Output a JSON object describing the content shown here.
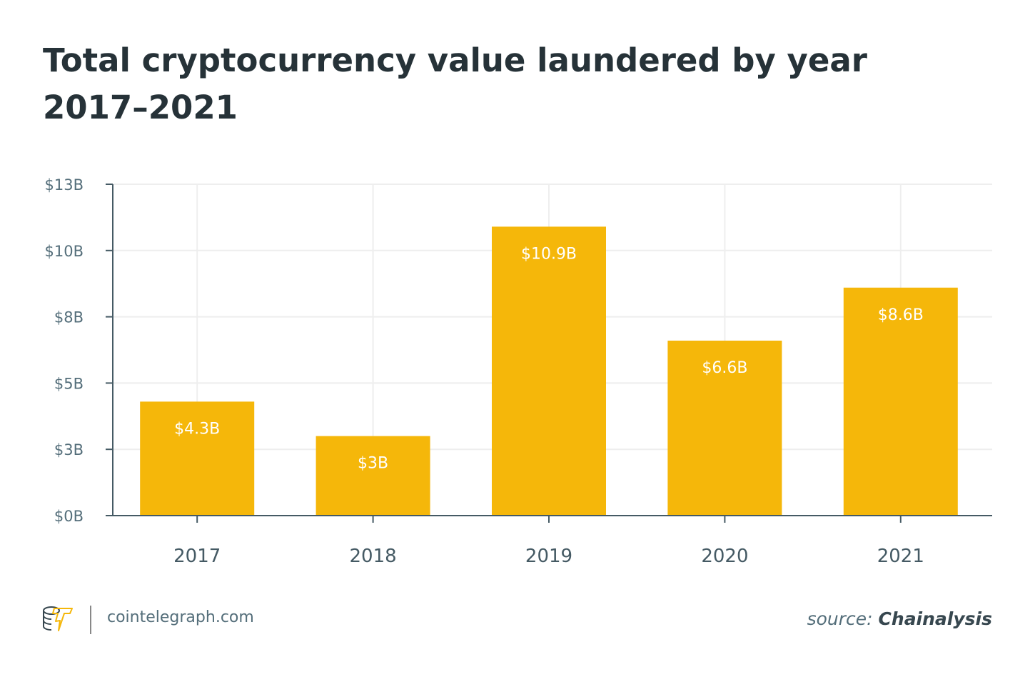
{
  "title_line1": "Total cryptocurrency value laundered by year",
  "title_line2": "2017–2021",
  "chart_data": {
    "type": "bar",
    "title": "Total cryptocurrency value laundered by year 2017–2021",
    "categories": [
      "2017",
      "2018",
      "2019",
      "2020",
      "2021"
    ],
    "values": [
      4.3,
      3.0,
      10.9,
      6.6,
      8.6
    ],
    "data_labels": [
      "$4.3B",
      "$3B",
      "$10.9B",
      "$6.6B",
      "$8.6B"
    ],
    "unit": "billion USD",
    "ylim": [
      0,
      12.5
    ],
    "y_ticks": [
      0,
      2.5,
      5,
      7.5,
      10,
      12.5
    ],
    "y_tick_labels": [
      "$0B",
      "$3B",
      "$5B",
      "$8B",
      "$10B",
      "$13B"
    ],
    "xlabel": "",
    "ylabel": "",
    "grid": true,
    "colors": {
      "bar": "#F5B70A",
      "axis": "#455A64",
      "grid": "#EEEEEE",
      "label": "#FFFFFF"
    }
  },
  "footer": {
    "site": "cointelegraph.com",
    "source_prefix": "source:",
    "source_name": "Chainalysis",
    "logo_color": "#F5B70A"
  }
}
